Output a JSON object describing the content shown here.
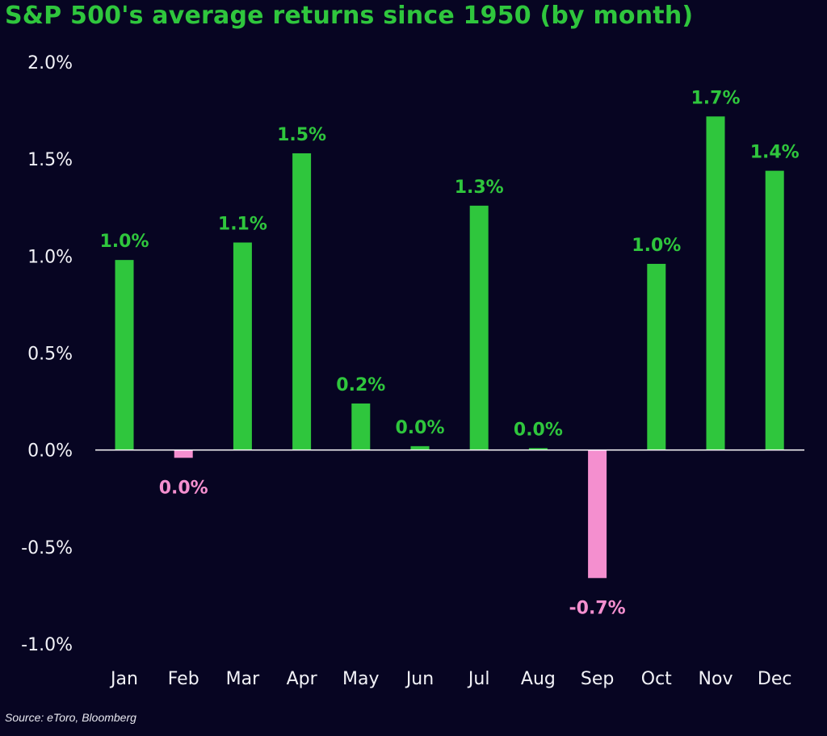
{
  "chart_data": {
    "type": "bar",
    "title": "S&P 500's average returns since 1950 (by month)",
    "xlabel": "",
    "ylabel": "",
    "categories": [
      "Jan",
      "Feb",
      "Mar",
      "Apr",
      "May",
      "Jun",
      "Jul",
      "Aug",
      "Sep",
      "Oct",
      "Nov",
      "Dec"
    ],
    "values": [
      0.98,
      -0.04,
      1.07,
      1.53,
      0.24,
      0.02,
      1.26,
      0.01,
      -0.66,
      0.96,
      1.72,
      1.44
    ],
    "data_labels": [
      "1.0%",
      "0.0%",
      "1.1%",
      "1.5%",
      "0.2%",
      "0.0%",
      "1.3%",
      "0.0%",
      "-0.7%",
      "1.0%",
      "1.7%",
      "1.4%"
    ],
    "ylim": [
      -1.0,
      2.0
    ],
    "yticks": [
      2.0,
      1.5,
      1.0,
      0.5,
      0.0,
      -0.5,
      -1.0
    ],
    "ytick_labels": [
      "2.0%",
      "1.5%",
      "1.0%",
      "0.5%",
      "0.0%",
      "-0.5%",
      "-1.0%"
    ],
    "grid": false,
    "legend": "none",
    "colors": {
      "positive": "#2fc63d",
      "negative": "#f48fcf",
      "background": "#070522",
      "axis": "#ffffff",
      "text": "#f2f2f7"
    }
  },
  "source": "Source: eToro, Bloomberg"
}
